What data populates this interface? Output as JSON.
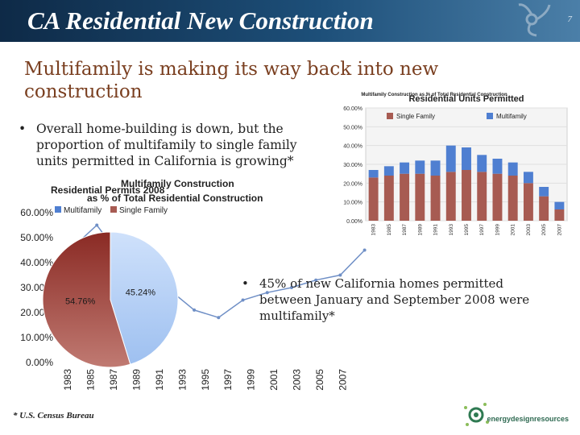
{
  "header": {
    "title": "CA Residential New Construction",
    "slide_number": "7"
  },
  "subtitle": "Multifamily is making its way back into new construction",
  "bullets": [
    "Overall home-building is down, but the proportion of multifamily to single family units permitted in California is growing*",
    "45% of new California homes permitted between January and September 2008 were multifamily*"
  ],
  "footnote": "* U.S. Census Bureau",
  "brand": "energydesignresources",
  "colors": {
    "single_family": "#a75b52",
    "multifamily": "#4f7fd1",
    "header": "#1d4f79"
  },
  "chart_data": [
    {
      "type": "bar",
      "title": "Residential Units Permitted",
      "subtitle": "Multifamily Construction as % of Total Residential Construction",
      "categories": [
        "1983",
        "1985",
        "1987",
        "1989",
        "1991",
        "1993",
        "1995",
        "1997",
        "1999",
        "2001",
        "2003",
        "2005",
        "2007"
      ],
      "series": [
        {
          "name": "Single Family",
          "values": [
            23,
            24,
            25,
            25,
            24,
            26,
            27,
            26,
            25,
            24,
            20,
            13,
            6
          ]
        },
        {
          "name": "Multifamily",
          "values": [
            4,
            5,
            6,
            7,
            8,
            14,
            12,
            9,
            8,
            7,
            6,
            5,
            4
          ]
        }
      ],
      "ytick_labels": [
        "0.00%",
        "10.00%",
        "20.00%",
        "30.00%",
        "40.00%",
        "50.00%",
        "60.00%"
      ],
      "ylim": [
        0,
        60
      ],
      "legend": "top"
    },
    {
      "type": "line",
      "title": "Multifamily Construction as % of Total Residential Construction",
      "x": [
        "1983",
        "1985",
        "1987",
        "1989",
        "1991",
        "1993",
        "1995",
        "1997",
        "1999",
        "2001",
        "2003",
        "2005",
        "2007"
      ],
      "series": [
        {
          "name": "Multifamily",
          "values": [
            46,
            55,
            42,
            31,
            29,
            21,
            18,
            25,
            28,
            30,
            33,
            35,
            45
          ]
        }
      ],
      "ytick_labels": [
        "0.00%",
        "10.00%",
        "20.00%",
        "30.00%",
        "40.00%",
        "50.00%",
        "60.00%"
      ],
      "ylim": [
        0,
        60
      ],
      "grid": false
    },
    {
      "type": "pie",
      "title": "Residential Permits 2008",
      "labels": [
        "Multifamily",
        "Single Family"
      ],
      "values": [
        45.24,
        54.76
      ],
      "value_labels": [
        "45.24%",
        "54.76%"
      ],
      "legend": "top-left"
    }
  ]
}
